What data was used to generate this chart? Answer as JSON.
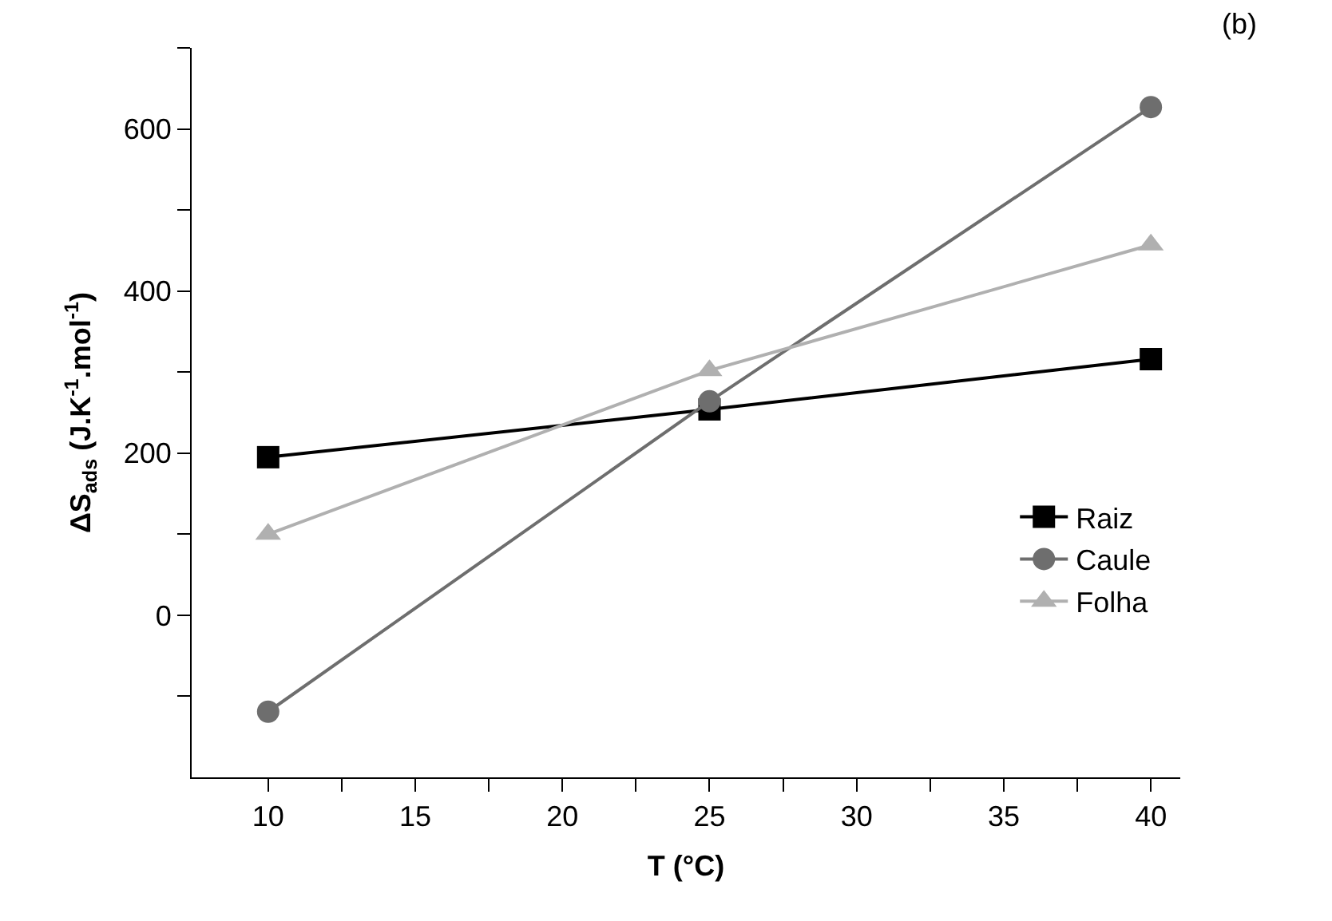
{
  "chart_data": {
    "type": "line",
    "x": [
      10,
      25,
      40
    ],
    "xlabel": "T (°C)",
    "ylabel": "ΔS$_{ads}$ (J.K$^{-1}$.mol$^{-1}$)",
    "annotations": [
      "(b)"
    ],
    "series": [
      {
        "name": "Raiz",
        "color": "#000000",
        "marker": "square",
        "values": [
          195,
          254,
          316
        ]
      },
      {
        "name": "Caule",
        "color": "#6e6e6e",
        "marker": "circle",
        "values": [
          -119,
          264,
          627
        ]
      },
      {
        "name": "Folha",
        "color": "#b0b0b0",
        "marker": "triangle",
        "values": [
          100,
          302,
          457
        ]
      }
    ],
    "xlim": [
      7.4,
      41
    ],
    "xticks": [
      10,
      {
        "value": 12.5,
        "label": null
      },
      15,
      {
        "value": 17.5,
        "label": null
      },
      20,
      {
        "value": 22.5,
        "label": null
      },
      25,
      {
        "value": 27.5,
        "label": null
      },
      30,
      {
        "value": 32.5,
        "label": null
      },
      35,
      {
        "value": 37.5,
        "label": null
      },
      40
    ],
    "ylim": [
      -200,
      700
    ],
    "yticks": [
      {
        "value": -100,
        "label": null
      },
      0,
      {
        "value": 100,
        "label": null
      },
      200,
      {
        "value": 300,
        "label": null
      },
      400,
      {
        "value": 500,
        "label": null
      },
      600,
      {
        "value": 700,
        "label": null
      }
    ],
    "legend": "bottom right",
    "line_style": "solid"
  }
}
